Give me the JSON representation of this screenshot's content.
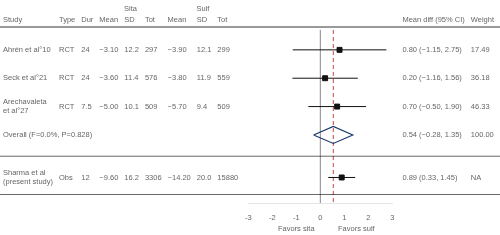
{
  "chart_data": {
    "type": "forest",
    "categories": [
      "Ahrén et al°10",
      "Seck et al°21",
      [
        "Arechavaleta",
        "et al°27"
      ],
      "Overall (F=0.0%, P=0.828)",
      [
        "Sharma et al",
        "(present study)"
      ]
    ],
    "series": [
      {
        "marker": "square",
        "color": "#111111",
        "values": [
          0.8,
          0.2,
          0.7,
          null,
          0.89
        ],
        "ci_lower": [
          -1.15,
          -1.16,
          -0.5,
          null,
          0.33
        ],
        "ci_upper": [
          2.75,
          1.56,
          1.9,
          null,
          1.45
        ]
      },
      {
        "marker": "diamond",
        "color": "#1a3a6e",
        "values": [
          null,
          null,
          null,
          0.54,
          null
        ],
        "ci_lower": [
          null,
          null,
          null,
          -0.28,
          null
        ],
        "ci_upper": [
          null,
          null,
          null,
          1.35,
          null
        ]
      }
    ],
    "xlim": [
      -3,
      3
    ],
    "xticks": [
      -3,
      -2,
      -1,
      0,
      1,
      2,
      3
    ],
    "grid": false,
    "tick_labels": "x",
    "reference_lines": [
      {
        "value": 0,
        "color": "#888888"
      },
      {
        "value": 0.54,
        "color": "#cc4444",
        "line_style": "dashed"
      }
    ],
    "annotations": [
      {
        "text": "Favors sita",
        "x": -1
      },
      {
        "text": "Favors sulf",
        "x": 1.5
      }
    ],
    "table": {
      "study_header": "Study",
      "left": [
        {
          "header": "Type",
          "cells": [
            "RCT",
            "RCT",
            "RCT",
            null,
            "Obs"
          ]
        },
        {
          "header": "Dur",
          "cells": [
            "24",
            "24",
            "7.5",
            null,
            "12"
          ]
        },
        {
          "header": "Mean",
          "group": "Sita",
          "cells": [
            "−3.10",
            "−3.60",
            "−5.00",
            null,
            "−9.60"
          ]
        },
        {
          "header": "SD",
          "group": "Sita",
          "cells": [
            "12.2",
            "11.4",
            "10.1",
            null,
            "16.2"
          ]
        },
        {
          "header": "Tot",
          "group": "Sita",
          "cells": [
            "297",
            "576",
            "509",
            null,
            "3306"
          ]
        },
        {
          "header": "Mean",
          "group": "Sulf",
          "cells": [
            "−3.90",
            "−3.80",
            "−5.70",
            null,
            "−14.20"
          ]
        },
        {
          "header": "SD",
          "group": "Sulf",
          "cells": [
            "12.1",
            "11.9",
            "9.4",
            null,
            "20.0"
          ]
        },
        {
          "header": "Tot",
          "group": "Sulf",
          "cells": [
            "299",
            "559",
            "509",
            null,
            "15880"
          ]
        }
      ],
      "right": [
        {
          "header": "Mean diff (95% CI)",
          "cells": [
            "0.80 (−1.15, 2.75)",
            "0.20 (−1.16, 1.56)",
            "0.70 (−0.50, 1.90)",
            "0.54 (−0.28, 1.35)",
            "0.89 (0.33, 1.45)"
          ]
        },
        {
          "header": "Weight",
          "cells": [
            "17.49",
            "36.18",
            "46.33",
            "100.00",
            "NA"
          ]
        }
      ]
    }
  }
}
